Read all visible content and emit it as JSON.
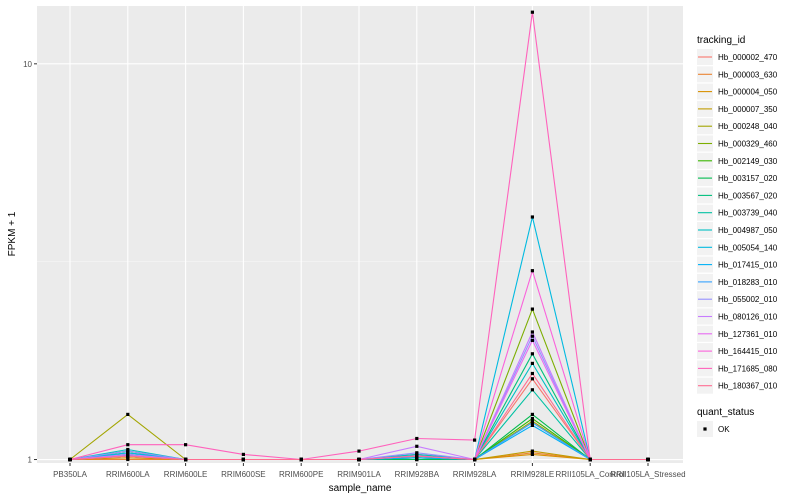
{
  "chart_data": {
    "type": "line",
    "xlabel": "sample_name",
    "ylabel": "FPKM + 1",
    "y_scale": "log10",
    "ylim": [
      0.98,
      14.0
    ],
    "y_ticks": [
      1,
      10
    ],
    "y_tick_labels": [
      "1",
      "10"
    ],
    "categories": [
      "PB350LA",
      "RRIM600LA",
      "RRIM600LE",
      "RRIM600SE",
      "RRIM600PE",
      "RRIM901LA",
      "RRIM928BA",
      "RRIM928LA",
      "RRIM928LE",
      "RRII105LA_Control",
      "RRII105LA_Stressed"
    ],
    "legend_title": "tracking_id",
    "shape_legend_title": "quant_status",
    "shape_legend_items": [
      "OK"
    ],
    "series": [
      {
        "name": "Hb_000002_470",
        "color": "#F8766D",
        "values": [
          1.0,
          1.02,
          1.0,
          1.0,
          1.0,
          1.0,
          1.03,
          1.0,
          1.6,
          1.0,
          1.0
        ]
      },
      {
        "name": "Hb_000003_630",
        "color": "#EA8331",
        "values": [
          1.0,
          1.0,
          1.0,
          1.0,
          1.0,
          1.0,
          1.0,
          1.0,
          1.04,
          1.0,
          1.0
        ]
      },
      {
        "name": "Hb_000004_050",
        "color": "#D89000",
        "values": [
          1.0,
          1.01,
          1.0,
          1.0,
          1.0,
          1.0,
          1.01,
          1.0,
          1.03,
          1.0,
          1.0
        ]
      },
      {
        "name": "Hb_000007_350",
        "color": "#C09B00",
        "values": [
          1.0,
          1.02,
          1.0,
          1.0,
          1.0,
          1.0,
          1.0,
          1.0,
          1.05,
          1.0,
          1.0
        ]
      },
      {
        "name": "Hb_000248_040",
        "color": "#A3A500",
        "values": [
          1.0,
          1.3,
          1.0,
          1.0,
          1.0,
          1.0,
          1.0,
          1.0,
          1.25,
          1.0,
          1.0
        ]
      },
      {
        "name": "Hb_000329_460",
        "color": "#7CAE00",
        "values": [
          1.0,
          1.05,
          1.0,
          1.0,
          1.0,
          1.0,
          1.02,
          1.0,
          2.4,
          1.0,
          1.0
        ]
      },
      {
        "name": "Hb_002149_030",
        "color": "#39B600",
        "values": [
          1.0,
          1.03,
          1.0,
          1.0,
          1.0,
          1.0,
          1.01,
          1.0,
          1.27,
          1.0,
          1.0
        ]
      },
      {
        "name": "Hb_003157_020",
        "color": "#00BB4E",
        "values": [
          1.0,
          1.02,
          1.0,
          1.0,
          1.0,
          1.0,
          1.0,
          1.0,
          1.3,
          1.0,
          1.0
        ]
      },
      {
        "name": "Hb_003567_020",
        "color": "#00BF7D",
        "values": [
          1.0,
          1.04,
          1.0,
          1.0,
          1.0,
          1.0,
          1.02,
          1.0,
          1.85,
          1.0,
          1.0
        ]
      },
      {
        "name": "Hb_003739_040",
        "color": "#00C1A3",
        "values": [
          1.0,
          1.03,
          1.0,
          1.0,
          1.0,
          1.0,
          1.01,
          1.0,
          1.5,
          1.0,
          1.0
        ]
      },
      {
        "name": "Hb_004987_050",
        "color": "#00BFC4",
        "values": [
          1.0,
          1.06,
          1.0,
          1.0,
          1.0,
          1.0,
          1.03,
          1.0,
          1.75,
          1.0,
          1.0
        ]
      },
      {
        "name": "Hb_005054_140",
        "color": "#00BAE0",
        "values": [
          1.0,
          1.04,
          1.0,
          1.0,
          1.0,
          1.0,
          1.02,
          1.0,
          4.1,
          1.0,
          1.0
        ]
      },
      {
        "name": "Hb_017415_010",
        "color": "#00B0F6",
        "values": [
          1.0,
          1.03,
          1.0,
          1.0,
          1.0,
          1.0,
          1.01,
          1.0,
          1.22,
          1.0,
          1.0
        ]
      },
      {
        "name": "Hb_018283_010",
        "color": "#35A2FF",
        "values": [
          1.0,
          1.02,
          1.0,
          1.0,
          1.0,
          1.0,
          1.02,
          1.0,
          1.24,
          1.0,
          1.0
        ]
      },
      {
        "name": "Hb_055002_010",
        "color": "#9590FF",
        "values": [
          1.0,
          1.05,
          1.0,
          1.0,
          1.0,
          1.0,
          1.04,
          1.0,
          2.05,
          1.0,
          1.0
        ]
      },
      {
        "name": "Hb_080126_010",
        "color": "#C77CFF",
        "values": [
          1.0,
          1.03,
          1.0,
          1.0,
          1.0,
          1.0,
          1.08,
          1.0,
          2.1,
          1.0,
          1.0
        ]
      },
      {
        "name": "Hb_127361_010",
        "color": "#E76BF3",
        "values": [
          1.0,
          1.02,
          1.0,
          1.0,
          1.0,
          1.0,
          1.02,
          1.0,
          2.0,
          1.0,
          1.0
        ]
      },
      {
        "name": "Hb_164415_010",
        "color": "#FA62DB",
        "values": [
          1.0,
          1.02,
          1.0,
          1.0,
          1.0,
          1.0,
          1.02,
          1.0,
          3.0,
          1.0,
          1.0
        ]
      },
      {
        "name": "Hb_171685_080",
        "color": "#FF62BC",
        "values": [
          1.0,
          1.09,
          1.09,
          1.03,
          1.0,
          1.05,
          1.13,
          1.12,
          13.5,
          1.0,
          1.0
        ]
      },
      {
        "name": "Hb_180367_010",
        "color": "#FF6C91",
        "values": [
          1.0,
          1.02,
          1.0,
          1.0,
          1.0,
          1.0,
          1.02,
          1.0,
          1.65,
          1.0,
          1.0
        ]
      }
    ]
  }
}
